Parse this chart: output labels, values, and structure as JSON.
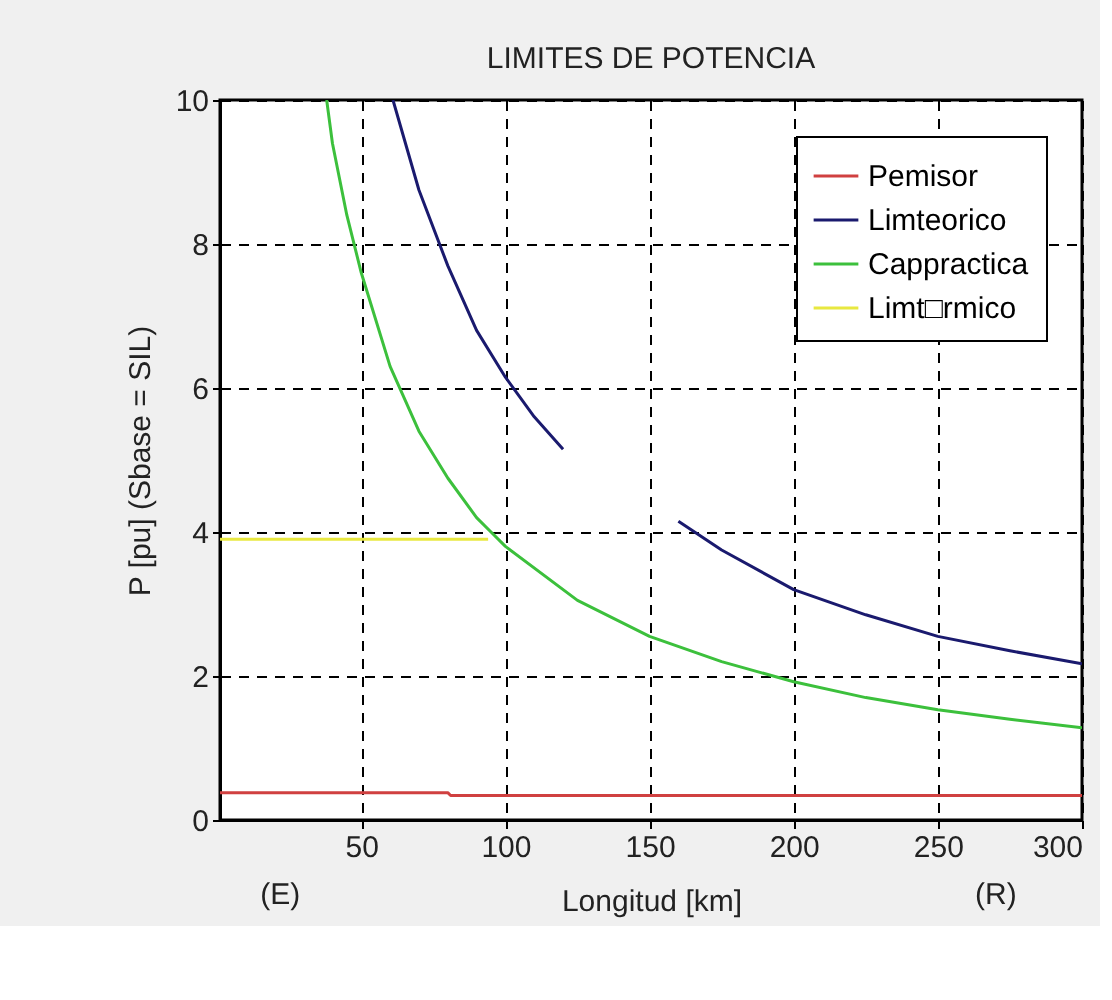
{
  "chart_data": {
    "type": "line",
    "title": "LIMITES DE POTENCIA",
    "xlabel": "Longitud [km]",
    "ylabel": "P [pu]   (Sbase = SIL)",
    "xlim": [
      1,
      300
    ],
    "ylim": [
      0,
      10
    ],
    "xticks": [
      50,
      100,
      150,
      200,
      250,
      300
    ],
    "yticks": [
      0,
      2,
      4,
      6,
      8,
      10
    ],
    "grid": true,
    "legend": "top right",
    "line_style": "solid",
    "marker": "none",
    "annotations": [
      "(E)",
      "(R)"
    ],
    "series": [
      {
        "name": "Pemisor",
        "color": "#d04040",
        "x": [
          1,
          80,
          81,
          300
        ],
        "values": [
          0.38,
          0.38,
          0.34,
          0.34
        ]
      },
      {
        "name": "Limteorico",
        "color": "#1a1a6e",
        "x": [
          61,
          70,
          80,
          90,
          100,
          110,
          120,
          126,
          160,
          175,
          200,
          225,
          250,
          275,
          300
        ],
        "values": [
          10,
          8.75,
          7.7,
          6.8,
          6.15,
          5.6,
          5.15,
          null,
          4.15,
          3.75,
          3.2,
          2.85,
          2.55,
          2.35,
          2.17
        ]
      },
      {
        "name": "Cappractica",
        "color": "#3cc03c",
        "x": [
          38,
          40,
          45,
          50,
          60,
          70,
          80,
          90,
          95,
          100,
          125,
          150,
          175,
          200,
          225,
          250,
          275,
          300
        ],
        "values": [
          10,
          9.4,
          8.4,
          7.6,
          6.3,
          5.4,
          4.75,
          4.2,
          4.0,
          3.8,
          3.05,
          2.55,
          2.2,
          1.92,
          1.7,
          1.53,
          1.4,
          1.28
        ]
      },
      {
        "name": "Limt□rmico",
        "color": "#e8e840",
        "x": [
          1,
          94
        ],
        "values": [
          3.9,
          3.9
        ]
      }
    ]
  }
}
